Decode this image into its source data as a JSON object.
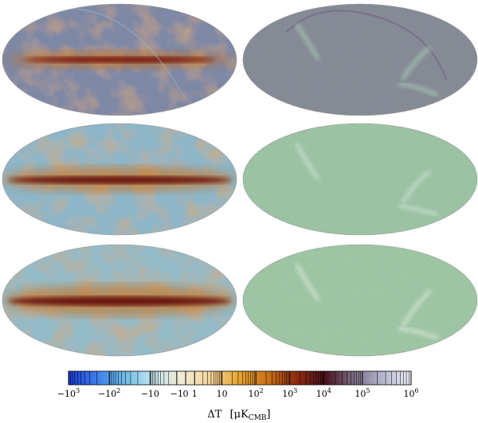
{
  "figure": {
    "panels": [
      {
        "row": 1,
        "column": "left",
        "kind": "data-map",
        "base_color": "#8a8f9a",
        "band_color": "#7a1a10"
      },
      {
        "row": 1,
        "column": "right",
        "kind": "residual-map",
        "base_color": "#8f94a0",
        "arc_color": "#b8e8c8"
      },
      {
        "row": 2,
        "column": "left",
        "kind": "data-map",
        "base_color": "#9fc0c8",
        "band_color": "#6a1608"
      },
      {
        "row": 2,
        "column": "right",
        "kind": "residual-map",
        "base_color": "#a6cfae",
        "arc_color": "#dff3e6"
      },
      {
        "row": 3,
        "column": "left",
        "kind": "data-map",
        "base_color": "#a9c6c6",
        "band_color": "#6a1608"
      },
      {
        "row": 3,
        "column": "right",
        "kind": "residual-map",
        "base_color": "#a9d2ae",
        "arc_color": "#eef8f0"
      }
    ]
  },
  "colorbar": {
    "stops": [
      "#1b3bd8",
      "#3c7ee8",
      "#6fbde6",
      "#c6e6ee",
      "#f3ecd3",
      "#f3d19a",
      "#e6a42e",
      "#c8701a",
      "#8e2a10",
      "#4a1220",
      "#7c6e86",
      "#b5b5cf",
      "#eeeef8"
    ],
    "tick_labels": [
      "−10",
      "3",
      "−10",
      "2",
      "−10",
      "−1",
      "0",
      "1",
      "10",
      "10",
      "2",
      "10",
      "3",
      "10",
      "4",
      "10",
      "5",
      "10",
      "6"
    ],
    "ticks": [
      {
        "base": "−10",
        "exp": "3"
      },
      {
        "base": "−10",
        "exp": "2"
      },
      {
        "base": "−10",
        "exp": ""
      },
      {
        "base": "−1",
        "exp": ""
      },
      {
        "base": "0",
        "exp": ""
      },
      {
        "base": "1",
        "exp": ""
      },
      {
        "base": "10",
        "exp": ""
      },
      {
        "base": "10",
        "exp": "2"
      },
      {
        "base": "10",
        "exp": "3"
      },
      {
        "base": "10",
        "exp": "4"
      },
      {
        "base": "10",
        "exp": "5"
      },
      {
        "base": "10",
        "exp": "6"
      }
    ],
    "label_prefix": "ΔT",
    "label_unit": "μK",
    "label_sub": "CMB"
  }
}
